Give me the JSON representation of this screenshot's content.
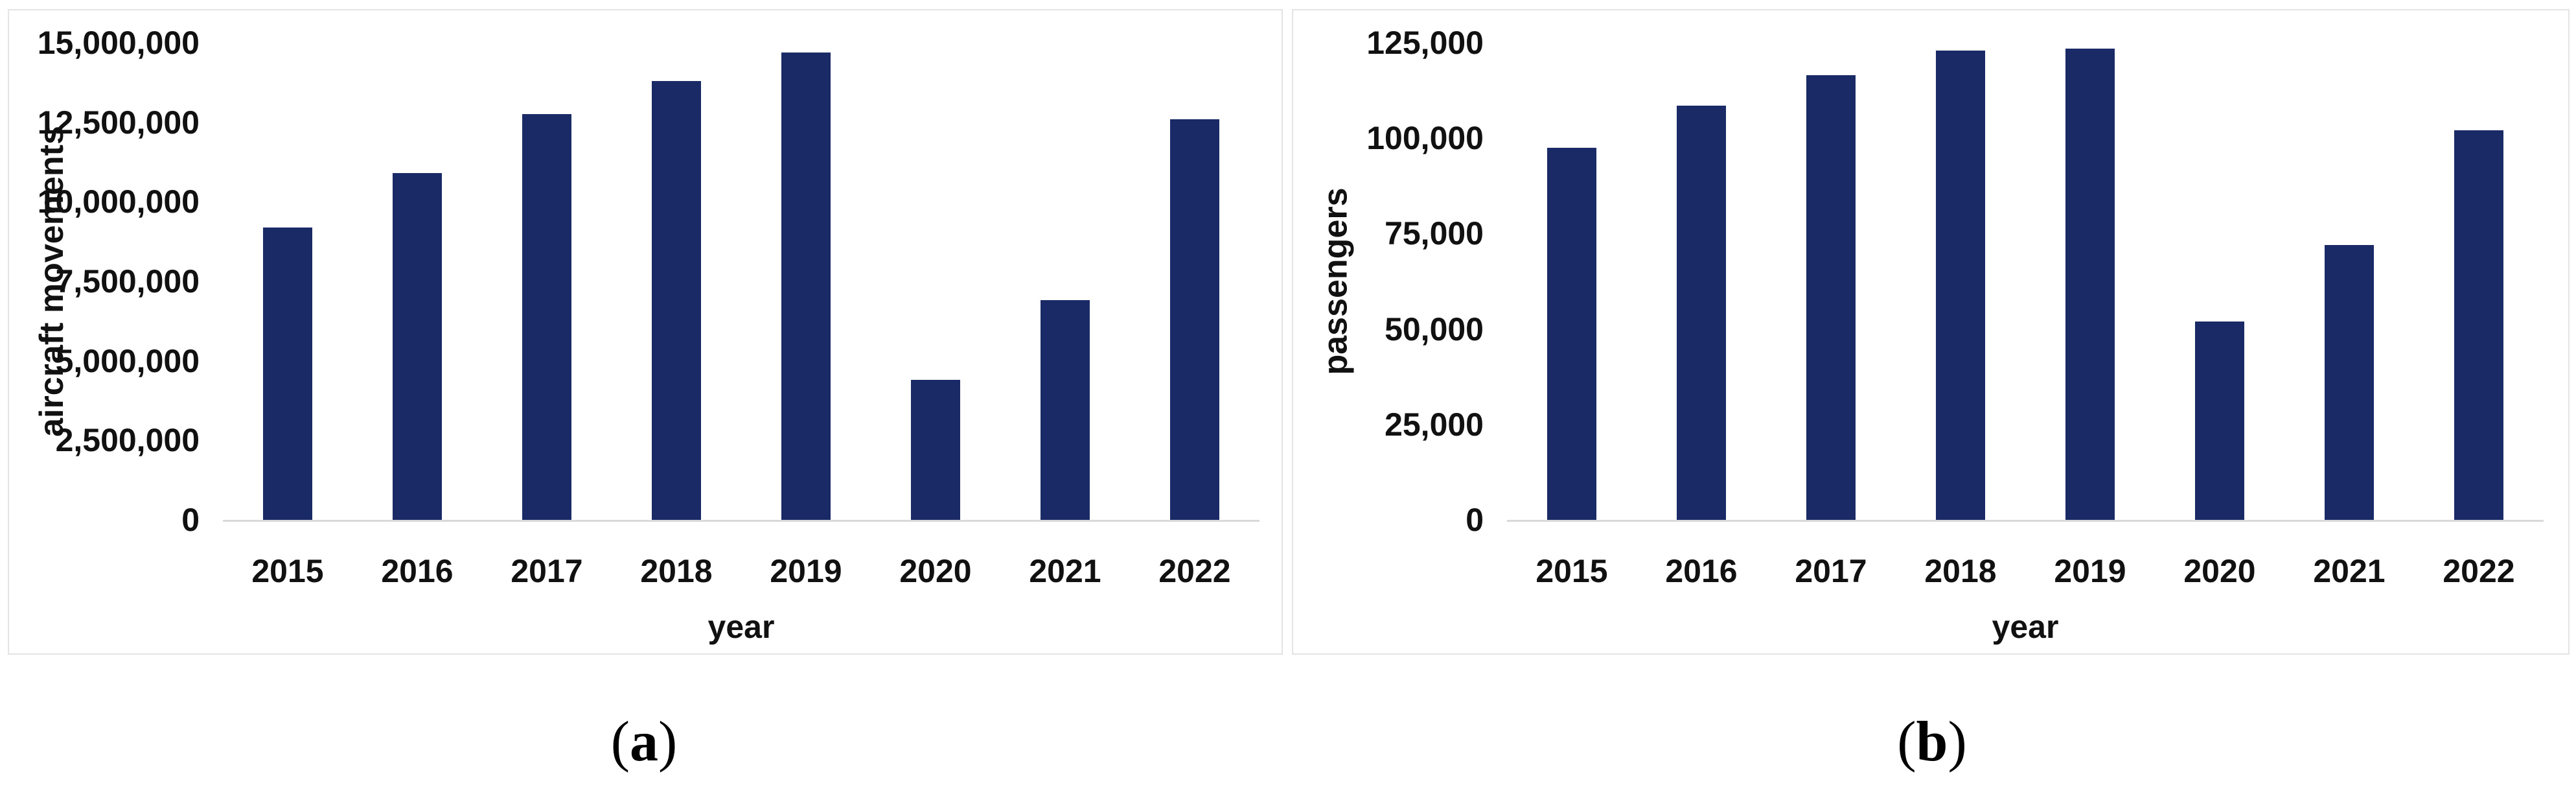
{
  "figure": {
    "captions": [
      {
        "open": "(",
        "letter": "a",
        "close": ")"
      },
      {
        "open": "(",
        "letter": "b",
        "close": ")"
      }
    ]
  },
  "colors": {
    "bar": "#1a2a66",
    "axis_line": "#d9d9d9",
    "panel_border": "#e4e4e4",
    "text": "#111111",
    "background": "#ffffff"
  },
  "chart_data": [
    {
      "type": "bar",
      "panel": "a",
      "title": "",
      "xlabel": "year",
      "ylabel": "aircraft movements",
      "categories": [
        "2015",
        "2016",
        "2017",
        "2018",
        "2019",
        "2020",
        "2021",
        "2022"
      ],
      "values": [
        9200000,
        10900000,
        12750000,
        13800000,
        14700000,
        4400000,
        6900000,
        12600000
      ],
      "ylim": [
        0,
        15000000
      ],
      "ytick_labels": [
        "15,000,000",
        "12,500,000",
        "10,000,000",
        "7,500,000",
        "5,000,000",
        "2,500,000",
        "0"
      ],
      "grid": false,
      "legend": "none"
    },
    {
      "type": "bar",
      "panel": "b",
      "title": "",
      "xlabel": "year",
      "ylabel": "passengers",
      "categories": [
        "2015",
        "2016",
        "2017",
        "2018",
        "2019",
        "2020",
        "2021",
        "2022"
      ],
      "values": [
        97500,
        108500,
        116500,
        123000,
        123500,
        52000,
        72000,
        102000
      ],
      "ylim": [
        0,
        125000
      ],
      "ytick_labels": [
        "125,000",
        "100,000",
        "75,000",
        "50,000",
        "25,000",
        "0"
      ],
      "grid": false,
      "legend": "none"
    }
  ]
}
